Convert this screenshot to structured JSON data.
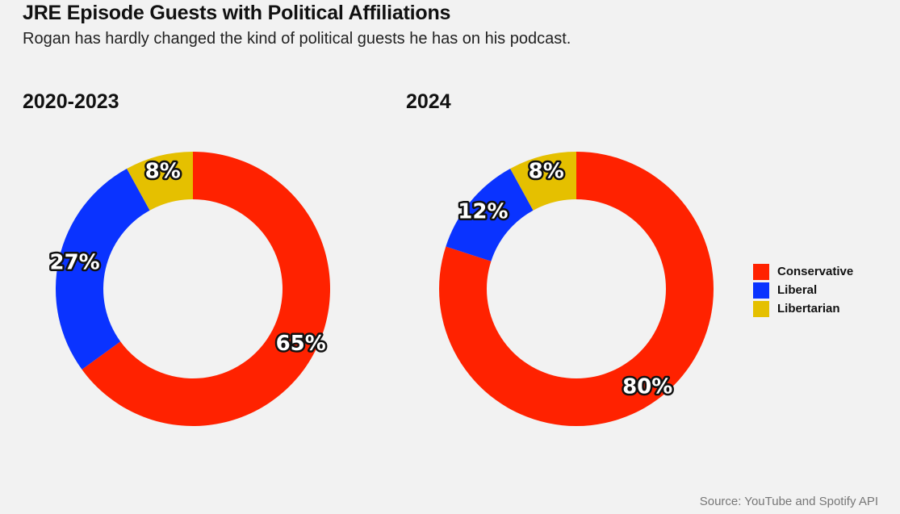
{
  "title": "JRE Episode Guests with Political Affiliations",
  "subtitle": "Rogan has hardly changed the kind of political guests he has on his podcast.",
  "source": "Source: YouTube and Spotify API",
  "colors": {
    "background": "#f2f2f2",
    "Conservative": "#ff2200",
    "Liberal": "#0a33ff",
    "Libertarian": "#e5c000"
  },
  "legend": {
    "items": [
      {
        "label": "Conservative",
        "color": "#ff2200"
      },
      {
        "label": "Liberal",
        "color": "#0a33ff"
      },
      {
        "label": "Libertarian",
        "color": "#e5c000"
      }
    ],
    "placement": "right"
  },
  "chart_data": [
    {
      "type": "pie",
      "style": "donut",
      "title": "2020-2023",
      "categories": [
        "Conservative",
        "Liberal",
        "Libertarian"
      ],
      "values": [
        65,
        27,
        8
      ],
      "labels": [
        "65%",
        "27%",
        "8%"
      ],
      "unit": "%"
    },
    {
      "type": "pie",
      "style": "donut",
      "title": "2024",
      "categories": [
        "Conservative",
        "Liberal",
        "Libertarian"
      ],
      "values": [
        80,
        12,
        8
      ],
      "labels": [
        "80%",
        "12%",
        "8%"
      ],
      "unit": "%"
    }
  ]
}
